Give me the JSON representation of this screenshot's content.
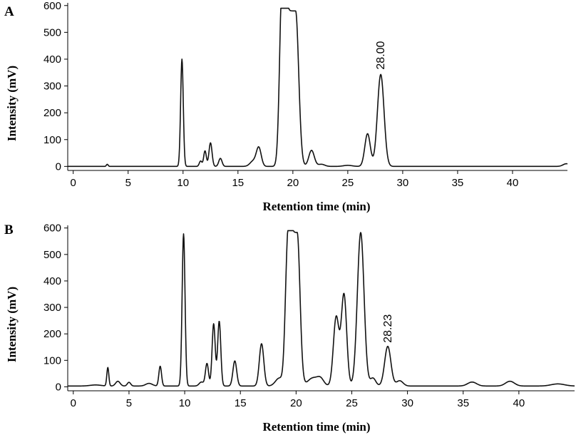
{
  "chart_data": [
    {
      "type": "line",
      "panel_label": "A",
      "xlabel": "Retention time (min)",
      "ylabel": "Intensity (mV)",
      "xlim": [
        -0.5,
        45
      ],
      "ylim": [
        -15,
        610
      ],
      "xticks": [
        0,
        5,
        10,
        15,
        20,
        25,
        30,
        35,
        40
      ],
      "yticks": [
        0,
        100,
        200,
        300,
        400,
        500,
        600
      ],
      "annotations": [
        {
          "text": "28.00",
          "x": 28.0,
          "y": 345
        }
      ],
      "baseline": 0,
      "peaks": [
        {
          "x": 3.1,
          "y": 8,
          "w": 0.08
        },
        {
          "x": 9.9,
          "y": 400,
          "w": 0.12
        },
        {
          "x": 11.6,
          "y": 20,
          "w": 0.12
        },
        {
          "x": 12.0,
          "y": 58,
          "w": 0.12
        },
        {
          "x": 12.5,
          "y": 88,
          "w": 0.14
        },
        {
          "x": 13.4,
          "y": 30,
          "w": 0.15
        },
        {
          "x": 16.4,
          "y": 20,
          "w": 0.3
        },
        {
          "x": 16.9,
          "y": 68,
          "w": 0.22
        },
        {
          "x": 19.0,
          "y": 575,
          "w": 0.22
        },
        {
          "x": 19.85,
          "y": 580,
          "w": 0.28,
          "flat": 0.8
        },
        {
          "x": 21.7,
          "y": 60,
          "w": 0.25
        },
        {
          "x": 22.6,
          "y": 8,
          "w": 0.3
        },
        {
          "x": 25.0,
          "y": 4,
          "w": 0.4
        },
        {
          "x": 26.8,
          "y": 122,
          "w": 0.25
        },
        {
          "x": 28.0,
          "y": 343,
          "w": 0.3
        },
        {
          "x": 44.9,
          "y": 10,
          "w": 0.3
        }
      ]
    },
    {
      "type": "line",
      "panel_label": "B",
      "xlabel": "Retention time (min)",
      "ylabel": "Intensity (mV)",
      "xlim": [
        -0.5,
        45
      ],
      "ylim": [
        -15,
        610
      ],
      "xticks": [
        0,
        5,
        10,
        15,
        20,
        25,
        30,
        35,
        40
      ],
      "yticks": [
        0,
        100,
        200,
        300,
        400,
        500,
        600
      ],
      "annotations": [
        {
          "text": "28.23",
          "x": 28.23,
          "y": 150
        }
      ],
      "baseline": 3,
      "peaks": [
        {
          "x": 2.0,
          "y": 4,
          "w": 0.5
        },
        {
          "x": 3.1,
          "y": 70,
          "w": 0.09
        },
        {
          "x": 4.0,
          "y": 18,
          "w": 0.2
        },
        {
          "x": 5.0,
          "y": 14,
          "w": 0.15
        },
        {
          "x": 6.8,
          "y": 10,
          "w": 0.3
        },
        {
          "x": 7.8,
          "y": 75,
          "w": 0.12
        },
        {
          "x": 9.9,
          "y": 575,
          "w": 0.13
        },
        {
          "x": 11.5,
          "y": 15,
          "w": 0.2
        },
        {
          "x": 12.0,
          "y": 85,
          "w": 0.14
        },
        {
          "x": 12.6,
          "y": 235,
          "w": 0.14
        },
        {
          "x": 13.1,
          "y": 245,
          "w": 0.14
        },
        {
          "x": 14.5,
          "y": 95,
          "w": 0.17
        },
        {
          "x": 16.9,
          "y": 160,
          "w": 0.2
        },
        {
          "x": 18.5,
          "y": 30,
          "w": 0.35
        },
        {
          "x": 19.2,
          "y": 385,
          "w": 0.2
        },
        {
          "x": 19.85,
          "y": 580,
          "w": 0.25,
          "flat": 0.5
        },
        {
          "x": 21.5,
          "y": 30,
          "w": 0.45
        },
        {
          "x": 22.2,
          "y": 25,
          "w": 0.3
        },
        {
          "x": 23.6,
          "y": 260,
          "w": 0.25
        },
        {
          "x": 24.3,
          "y": 345,
          "w": 0.24
        },
        {
          "x": 25.8,
          "y": 580,
          "w": 0.3
        },
        {
          "x": 26.9,
          "y": 30,
          "w": 0.25
        },
        {
          "x": 28.23,
          "y": 150,
          "w": 0.28
        },
        {
          "x": 29.3,
          "y": 20,
          "w": 0.3
        },
        {
          "x": 35.8,
          "y": 15,
          "w": 0.4
        },
        {
          "x": 39.2,
          "y": 18,
          "w": 0.4
        },
        {
          "x": 43.5,
          "y": 8,
          "w": 0.6
        }
      ]
    }
  ]
}
